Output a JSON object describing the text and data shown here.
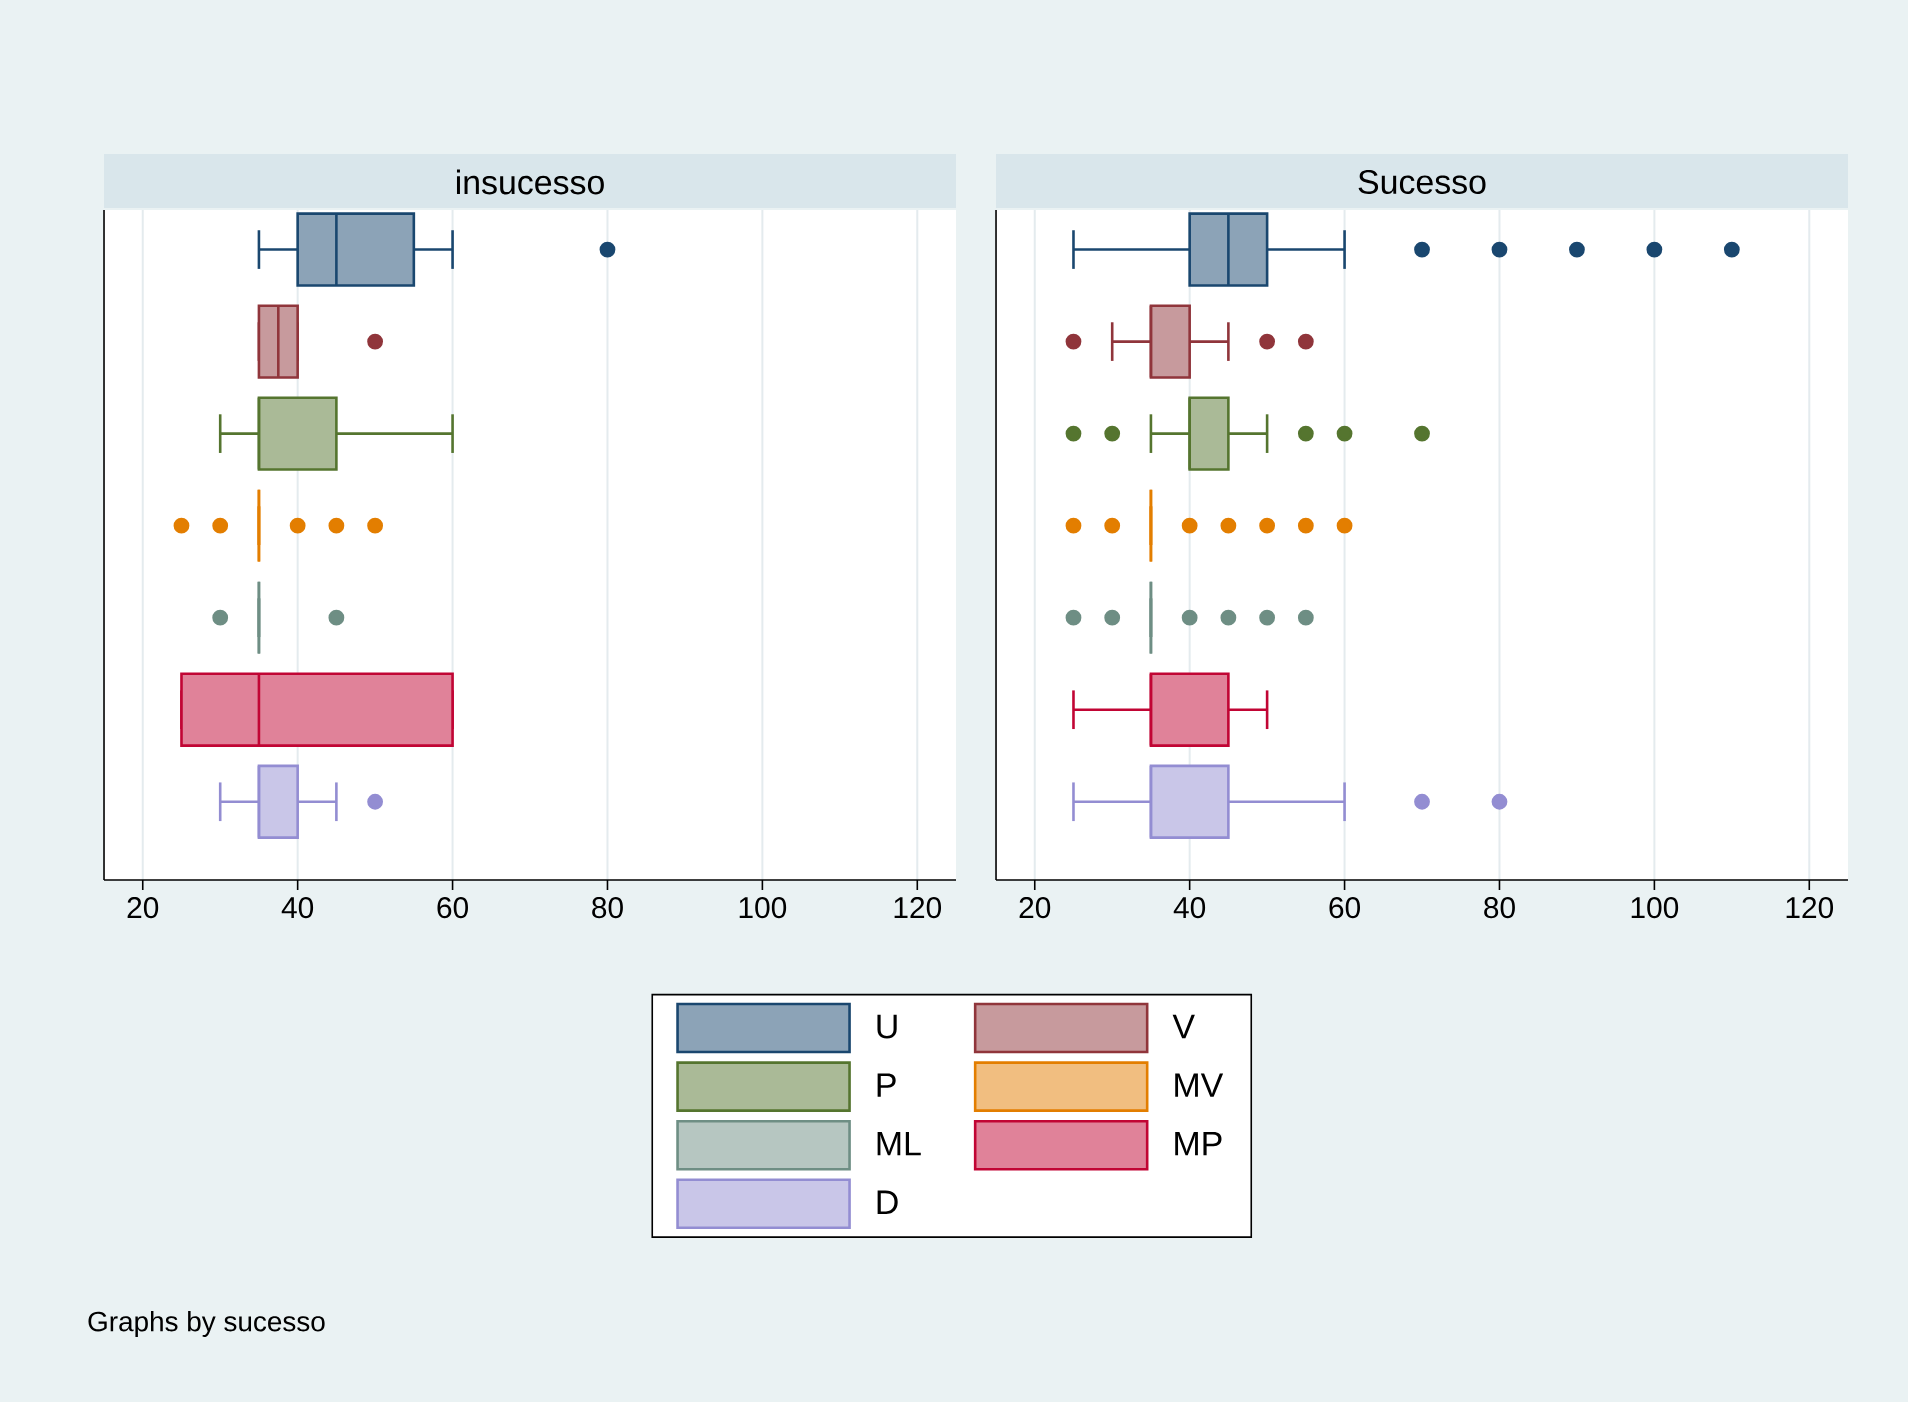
{
  "chart_data": [
    {
      "type": "box",
      "title": "insucesso",
      "orientation": "horizontal",
      "xlim": [
        15,
        125
      ],
      "xticks": [
        20,
        40,
        60,
        80,
        100,
        120
      ],
      "grid": "x",
      "tick_labels": "x",
      "marker": "circle",
      "legend": "bottom",
      "annotations": [
        "Graphs by sucesso"
      ],
      "series": [
        {
          "name": "U",
          "color": "#1a476f",
          "boxes": [
            {
              "low": 35,
              "q1": 40,
              "median": 45,
              "q3": 55,
              "high": 60,
              "outliers": [
                80
              ]
            }
          ]
        },
        {
          "name": "V",
          "color": "#90353b",
          "boxes": [
            {
              "low": 35,
              "q1": 35,
              "median": 37.5,
              "q3": 40,
              "high": 40,
              "outliers": [
                50
              ]
            }
          ]
        },
        {
          "name": "P",
          "color": "#55752f",
          "boxes": [
            {
              "low": 30,
              "q1": 35,
              "median": 35,
              "q3": 45,
              "high": 60
            }
          ]
        },
        {
          "name": "MV",
          "color": "#e37e00",
          "boxes": [
            {
              "low": 35,
              "q1": 35,
              "median": 35,
              "q3": 35,
              "high": 35,
              "outliers": [
                25,
                30,
                40,
                45,
                50
              ]
            }
          ]
        },
        {
          "name": "ML",
          "color": "#6e8e84",
          "boxes": [
            {
              "low": 35,
              "q1": 35,
              "median": 35,
              "q3": 35,
              "high": 35,
              "outliers": [
                30,
                45
              ]
            }
          ]
        },
        {
          "name": "MP",
          "color": "#c10534",
          "boxes": [
            {
              "low": 25,
              "q1": 25,
              "median": 35,
              "q3": 60,
              "high": 60
            }
          ]
        },
        {
          "name": "D",
          "color": "#938dd2",
          "boxes": [
            {
              "low": 30,
              "q1": 35,
              "median": 35,
              "q3": 40,
              "high": 45,
              "outliers": [
                50
              ]
            }
          ]
        }
      ]
    },
    {
      "type": "box",
      "title": "Sucesso",
      "orientation": "horizontal",
      "xlim": [
        15,
        125
      ],
      "xticks": [
        20,
        40,
        60,
        80,
        100,
        120
      ],
      "grid": "x",
      "tick_labels": "x",
      "marker": "circle",
      "series": [
        {
          "color": "#1a476f",
          "boxes": [
            {
              "low": 25,
              "q1": 40,
              "median": 45,
              "q3": 50,
              "high": 60,
              "outliers": [
                70,
                80,
                90,
                100,
                110
              ]
            }
          ]
        },
        {
          "color": "#90353b",
          "boxes": [
            {
              "low": 30,
              "q1": 35,
              "median": 35,
              "q3": 40,
              "high": 45,
              "outliers": [
                25,
                50,
                55
              ]
            }
          ]
        },
        {
          "color": "#55752f",
          "boxes": [
            {
              "low": 35,
              "q1": 40,
              "median": 40,
              "q3": 45,
              "high": 50,
              "outliers": [
                25,
                30,
                55,
                60,
                70
              ]
            }
          ]
        },
        {
          "color": "#e37e00",
          "boxes": [
            {
              "low": 35,
              "q1": 35,
              "median": 35,
              "q3": 35,
              "high": 35,
              "outliers": [
                25,
                30,
                40,
                45,
                50,
                55,
                60
              ]
            }
          ]
        },
        {
          "color": "#6e8e84",
          "boxes": [
            {
              "low": 35,
              "q1": 35,
              "median": 35,
              "q3": 35,
              "high": 35,
              "outliers": [
                25,
                30,
                40,
                45,
                50,
                55
              ]
            }
          ]
        },
        {
          "color": "#c10534",
          "boxes": [
            {
              "low": 25,
              "q1": 35,
              "median": 35,
              "q3": 45,
              "high": 50
            }
          ]
        },
        {
          "color": "#938dd2",
          "boxes": [
            {
              "low": 25,
              "q1": 35,
              "median": 35,
              "q3": 45,
              "high": 60,
              "outliers": [
                70,
                80
              ]
            }
          ]
        }
      ]
    }
  ]
}
